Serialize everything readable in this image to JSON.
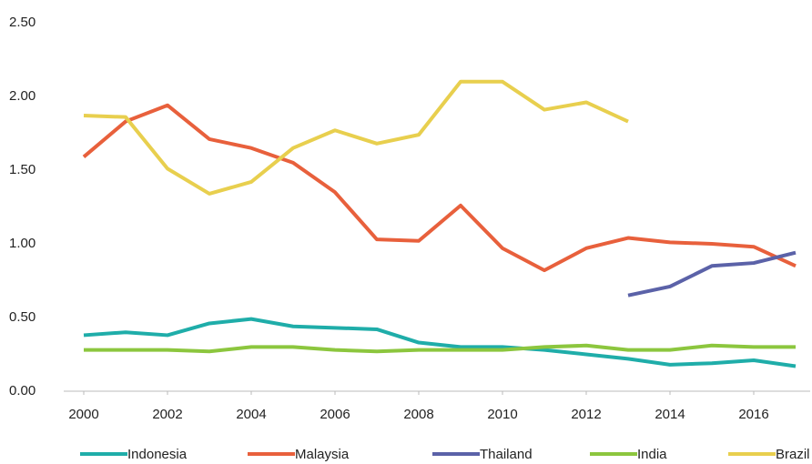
{
  "chart_data": {
    "type": "line",
    "x": [
      2000,
      2001,
      2002,
      2003,
      2004,
      2005,
      2006,
      2007,
      2008,
      2009,
      2010,
      2011,
      2012,
      2013,
      2014,
      2015,
      2016,
      2017
    ],
    "xlim": [
      2000,
      2017
    ],
    "xticks": [
      2000,
      2002,
      2004,
      2006,
      2008,
      2010,
      2012,
      2014,
      2016
    ],
    "ylim": [
      0,
      2.5
    ],
    "yticks": [
      {
        "value": 0,
        "label": "0.00"
      },
      {
        "value": 0.5,
        "label": "0.50"
      },
      {
        "value": 1,
        "label": "1.00"
      },
      {
        "value": 1.5,
        "label": "1.50"
      },
      {
        "value": 2,
        "label": "2.00"
      },
      {
        "value": 2.5,
        "label": "2.50"
      }
    ],
    "grid": false,
    "legend": "bottom",
    "series": [
      {
        "name": "Indonesia",
        "color": "#1fada9",
        "values": [
          0.38,
          0.4,
          0.38,
          0.46,
          0.49,
          0.44,
          0.43,
          0.42,
          0.33,
          0.3,
          0.3,
          0.28,
          0.25,
          0.22,
          0.18,
          0.19,
          0.21,
          0.17
        ]
      },
      {
        "name": "Malaysia",
        "color": "#e8603c",
        "values": [
          1.59,
          1.83,
          1.94,
          1.71,
          1.65,
          1.55,
          1.35,
          1.03,
          1.02,
          1.26,
          0.97,
          0.82,
          0.97,
          1.04,
          1.01,
          1.0,
          0.98,
          0.85
        ]
      },
      {
        "name": "Thailand",
        "color": "#5b62a8",
        "values": [
          null,
          null,
          null,
          null,
          null,
          null,
          null,
          null,
          null,
          null,
          null,
          null,
          null,
          0.65,
          0.71,
          0.85,
          0.87,
          0.94
        ]
      },
      {
        "name": "India",
        "color": "#8cc63e",
        "values": [
          0.28,
          0.28,
          0.28,
          0.27,
          0.3,
          0.3,
          0.28,
          0.27,
          0.28,
          0.28,
          0.28,
          0.3,
          0.31,
          0.28,
          0.28,
          0.31,
          0.3,
          0.3
        ]
      },
      {
        "name": "Brazil",
        "color": "#e8cf4e",
        "values": [
          1.87,
          1.86,
          1.51,
          1.34,
          1.42,
          1.65,
          1.77,
          1.68,
          1.74,
          2.1,
          2.1,
          1.91,
          1.96,
          1.83,
          null,
          null,
          null,
          null
        ]
      }
    ]
  }
}
